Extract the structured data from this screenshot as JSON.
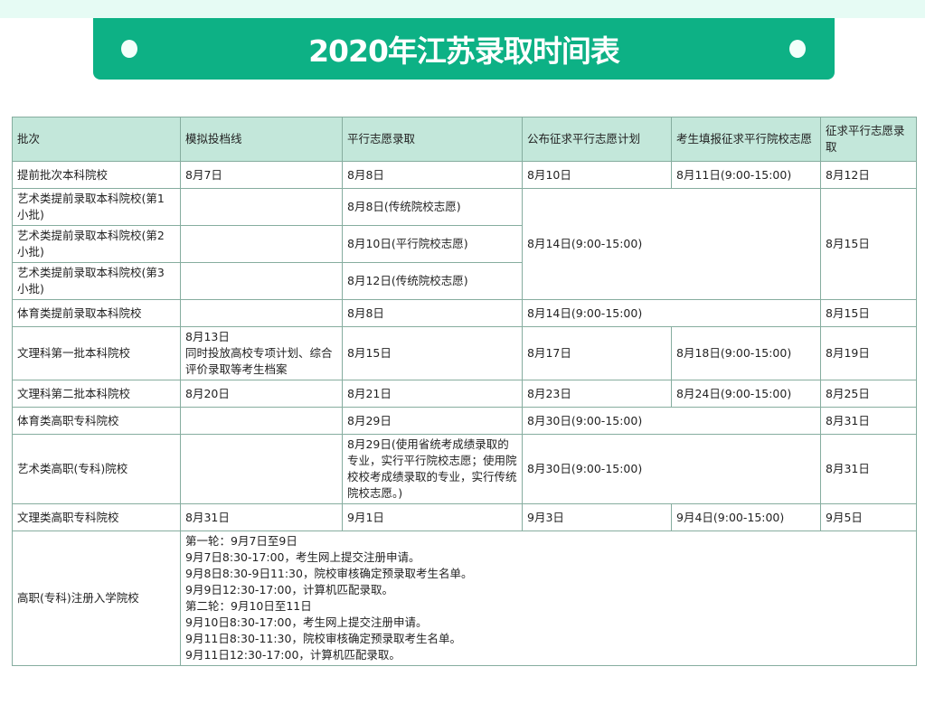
{
  "title": "2020年江苏录取时间表",
  "colors": {
    "banner": "#0db185",
    "header_bg": "#c3e7da",
    "border": "#86ad9f"
  },
  "table": {
    "headers": [
      "批次",
      "模拟投档线",
      "平行志愿录取",
      "公布征求平行志愿计划",
      "考生填报征求平行院校志愿",
      "征求平行志愿录取"
    ],
    "rows": [
      [
        {
          "t": "提前批次本科院校"
        },
        {
          "t": "8月7日"
        },
        {
          "t": "8月8日"
        },
        {
          "t": "8月10日"
        },
        {
          "t": "8月11日(9:00-15:00)"
        },
        {
          "t": "8月12日"
        }
      ],
      [
        {
          "t": "艺术类提前录取本科院校(第1小批)"
        },
        {
          "t": ""
        },
        {
          "t": "8月8日(传统院校志愿)"
        },
        {
          "t": "8月14日(9:00-15:00)",
          "cs": 2,
          "rs": 3
        },
        {
          "t": "8月15日",
          "rs": 3
        }
      ],
      [
        {
          "t": "艺术类提前录取本科院校(第2小批)"
        },
        {
          "t": ""
        },
        {
          "t": "8月10日(平行院校志愿)"
        }
      ],
      [
        {
          "t": "艺术类提前录取本科院校(第3小批)"
        },
        {
          "t": ""
        },
        {
          "t": "8月12日(传统院校志愿)"
        }
      ],
      [
        {
          "t": "体育类提前录取本科院校"
        },
        {
          "t": ""
        },
        {
          "t": "8月8日"
        },
        {
          "t": "8月14日(9:00-15:00)",
          "cs": 2
        },
        {
          "t": "8月15日"
        }
      ],
      [
        {
          "t": "文理科第一批本科院校"
        },
        {
          "lines": [
            "8月13日",
            "同时投放高校专项计划、综合评价录取等考生档案"
          ]
        },
        {
          "t": "8月15日"
        },
        {
          "t": "8月17日"
        },
        {
          "t": "8月18日(9:00-15:00)"
        },
        {
          "t": "8月19日"
        }
      ],
      [
        {
          "t": "文理科第二批本科院校"
        },
        {
          "t": "8月20日"
        },
        {
          "t": "8月21日"
        },
        {
          "t": "8月23日"
        },
        {
          "t": "8月24日(9:00-15:00)"
        },
        {
          "t": "8月25日"
        }
      ],
      [
        {
          "t": "体育类高职专科院校"
        },
        {
          "t": ""
        },
        {
          "t": "8月29日"
        },
        {
          "t": "8月30日(9:00-15:00)",
          "cs": 2
        },
        {
          "t": "8月31日"
        }
      ],
      [
        {
          "t": "艺术类高职(专科)院校"
        },
        {
          "t": ""
        },
        {
          "t": "8月29日(使用省统考成绩录取的专业，实行平行院校志愿；使用院校校考成绩录取的专业，实行传统院校志愿。)"
        },
        {
          "t": "8月30日(9:00-15:00)",
          "cs": 2
        },
        {
          "t": "8月31日"
        }
      ],
      [
        {
          "t": "文理类高职专科院校"
        },
        {
          "t": "8月31日"
        },
        {
          "t": "9月1日"
        },
        {
          "t": "9月3日"
        },
        {
          "t": "9月4日(9:00-15:00)"
        },
        {
          "t": "9月5日"
        }
      ],
      [
        {
          "t": "高职(专科)注册入学院校"
        },
        {
          "cs": 5,
          "lines": [
            "第一轮：9月7日至9日",
            "9月7日8:30-17:00，考生网上提交注册申请。",
            "9月8日8:30-9日11:30，院校审核确定预录取考生名单。",
            "9月9日12:30-17:00，计算机匹配录取。",
            "第二轮：9月10日至11日",
            "9月10日8:30-17:00，考生网上提交注册申请。",
            "9月11日8:30-11:30，院校审核确定预录取考生名单。",
            "9月11日12:30-17:00，计算机匹配录取。"
          ]
        }
      ]
    ]
  }
}
